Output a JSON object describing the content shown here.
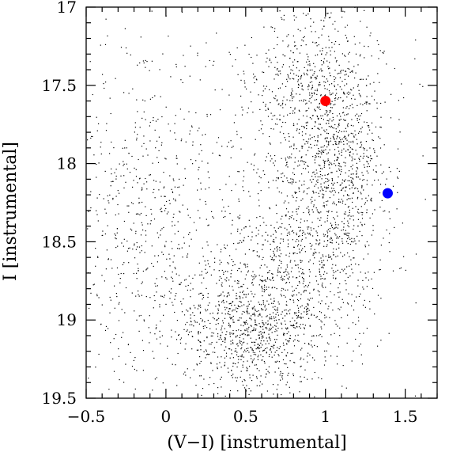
{
  "chart_data": {
    "type": "scatter",
    "title": "",
    "xlabel": "(V−I) [instrumental]",
    "ylabel": "I [instrumental]",
    "xlim": [
      -0.5,
      1.7
    ],
    "ylim": [
      19.5,
      17.0
    ],
    "y_inverted": true,
    "grid": false,
    "legend": "none",
    "x_ticks": [
      -0.5,
      0,
      0.5,
      1,
      1.5
    ],
    "x_tick_labels": [
      "−0.5",
      "0",
      "0.5",
      "1",
      "1.5"
    ],
    "y_ticks": [
      17,
      17.5,
      18,
      18.5,
      19,
      19.5
    ],
    "y_tick_labels": [
      "17",
      "17.5",
      "18",
      "18.5",
      "19",
      "19.5"
    ],
    "series": [
      {
        "marker": "dot",
        "color": "#000000",
        "point_count_approx": 3800,
        "components": [
          {
            "center_x": 0.95,
            "center_y": 17.55,
            "spread_x": 0.22,
            "spread_y": 0.3,
            "weight": 0.2
          },
          {
            "center_x": 1.05,
            "center_y": 18.1,
            "spread_x": 0.18,
            "spread_y": 0.3,
            "weight": 0.18
          },
          {
            "center_x": 0.85,
            "center_y": 18.6,
            "spread_x": 0.25,
            "spread_y": 0.25,
            "weight": 0.15
          },
          {
            "center_x": 0.55,
            "center_y": 19.05,
            "spread_x": 0.28,
            "spread_y": 0.2,
            "weight": 0.27
          },
          {
            "center_x": -0.1,
            "center_y": 18.3,
            "spread_x": 0.3,
            "spread_y": 0.55,
            "weight": 0.2
          }
        ]
      },
      {
        "marker": "circle",
        "color": "#ff0000",
        "x": [
          1.0
        ],
        "y": [
          17.6
        ]
      },
      {
        "marker": "circle",
        "color": "#0000ff",
        "x": [
          1.39
        ],
        "y": [
          18.19
        ]
      }
    ]
  }
}
